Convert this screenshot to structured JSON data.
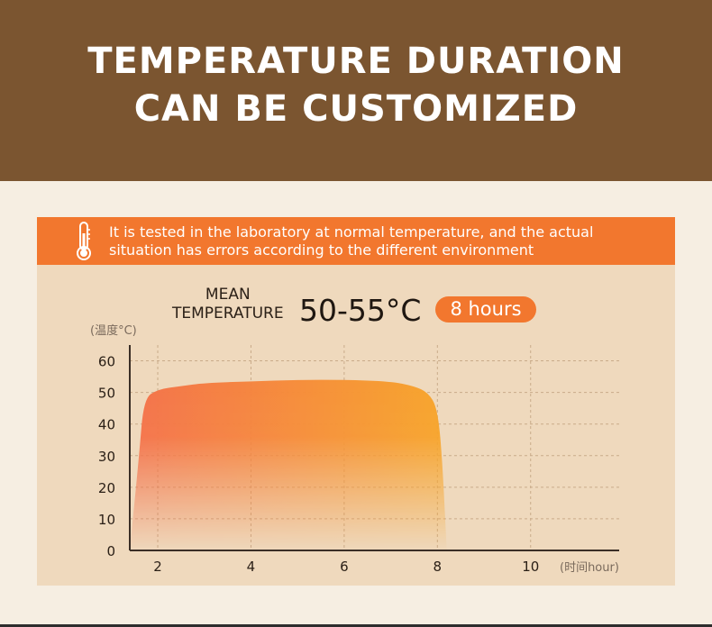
{
  "header": {
    "title_line1": "TEMPERATURE DURATION",
    "title_line2": "CAN BE CUSTOMIZED"
  },
  "banner": {
    "icon": "thermometer-icon",
    "text_line1": "It is tested in the laboratory at normal temperature, and the actual",
    "text_line2": "situation has errors according to the different environment"
  },
  "summary": {
    "mean_line1": "MEAN",
    "mean_line2": "TEMPERATURE",
    "temperature_range": "50-55°C",
    "duration_badge": "8 hours"
  },
  "colors": {
    "header_bg": "#7b5530",
    "accent": "#f2772e",
    "card_bg": "#efd9bd",
    "area_start": "#f4704a",
    "area_end": "#f7a52a"
  },
  "chart_data": {
    "type": "area",
    "ylabel": "(温度°C)",
    "xlabel": "(时间hour)",
    "x_ticks": [
      2,
      4,
      6,
      8,
      10
    ],
    "y_ticks": [
      0,
      10,
      20,
      30,
      40,
      50,
      60
    ],
    "xlim": [
      1.4,
      11.9
    ],
    "ylim": [
      0,
      65
    ],
    "grid": true,
    "series": [
      {
        "x": [
          1.4,
          1.6,
          1.7,
          2.0,
          2.5,
          3.0,
          4.0,
          5.0,
          6.0,
          7.0,
          7.5,
          7.8,
          8.0,
          8.1,
          8.2
        ],
        "values": [
          0,
          30,
          48,
          51,
          52,
          53,
          53.5,
          54,
          54,
          53.5,
          52,
          50,
          45,
          30,
          0
        ]
      }
    ]
  }
}
